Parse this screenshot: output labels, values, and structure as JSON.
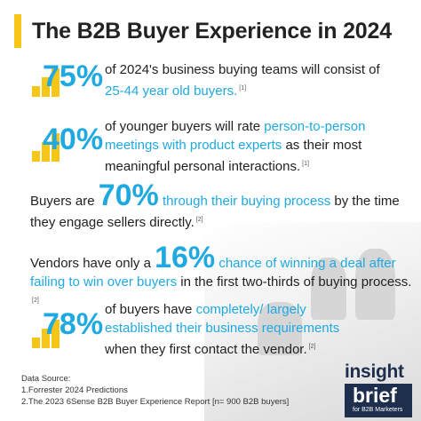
{
  "title": "The B2B Buyer Experience in 2024",
  "colors": {
    "accent_yellow": "#f5c518",
    "accent_blue": "#1fa9e1",
    "logo_navy": "#1e2e4d"
  },
  "stats": [
    {
      "value": "75%",
      "text": "of 2024's business buying teams will consist of",
      "highlight": "25-44 year old buyers.",
      "ref": "[1]"
    },
    {
      "value": "40%",
      "text_a": "of younger buyers will rate",
      "highlight": "person-to-person meetings with product experts",
      "text_b": "as their most meaningful personal interactions.",
      "ref": "[1]"
    },
    {
      "pre": "Buyers are",
      "value": "70%",
      "highlight": "through their buying process",
      "post": "by the time they engage sellers directly.",
      "ref": "[2]"
    },
    {
      "pre": "Vendors have only a",
      "value": "16%",
      "highlight": "chance of winning a deal after failing to win over buyers",
      "post": "in the first two-thirds of buying process.",
      "ref": "[2]"
    },
    {
      "value": "78%",
      "text_a": "of buyers have",
      "highlight": "completely/ largely established their business requirements",
      "text_b": "when they first contact the vendor.",
      "ref": "[2]"
    }
  ],
  "source": {
    "heading": "Data Source:",
    "items": [
      "1.Forrester 2024 Predictions",
      "2.The 2023 6Sense B2B Buyer Experience Report [n= 900 B2B buyers]"
    ]
  },
  "logo": {
    "line1": "insight",
    "line2": "brief",
    "tagline": "for B2B Marketers"
  }
}
